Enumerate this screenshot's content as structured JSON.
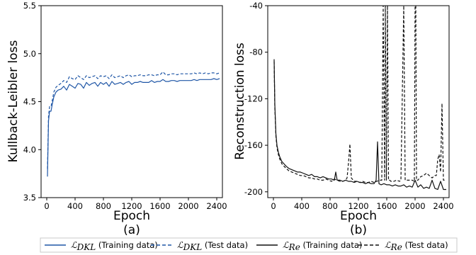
{
  "legend": {
    "items": [
      {
        "symbol": "ℒ",
        "sub": "DKL",
        "text": " (Training data)",
        "color": "#1f56a6",
        "dash": "none"
      },
      {
        "symbol": "ℒ",
        "sub": "DKL",
        "text": " (Test data)",
        "color": "#1f56a6",
        "dash": "5,3"
      },
      {
        "symbol": "ℒ",
        "sub": "Re",
        "text": " (Training data)",
        "color": "#111111",
        "dash": "none"
      },
      {
        "symbol": "ℒ",
        "sub": "Re",
        "text": " (Test data)",
        "color": "#111111",
        "dash": "5,3"
      }
    ]
  },
  "chart_data": [
    {
      "type": "line",
      "xlabel": "Epoch",
      "ylabel": "Kullback-Leibler loss",
      "sublabel": "(a)",
      "xlim": [
        -80,
        2480
      ],
      "ylim": [
        3.5,
        5.5
      ],
      "xticks": [
        0,
        400,
        800,
        1200,
        1600,
        2000,
        2400
      ],
      "yticks": [
        3.5,
        4.0,
        4.5,
        5.0,
        5.5
      ],
      "ytick_labels": [
        "3.5",
        "4.0",
        "4.5",
        "5.0",
        "5.5"
      ],
      "series": [
        {
          "style": "solid",
          "color": "#1f56a6",
          "x": [
            10,
            25,
            40,
            60,
            80,
            100,
            130,
            160,
            200,
            240,
            280,
            320,
            360,
            400,
            440,
            480,
            520,
            560,
            600,
            640,
            680,
            720,
            760,
            800,
            840,
            880,
            920,
            960,
            1000,
            1040,
            1080,
            1120,
            1160,
            1200,
            1240,
            1280,
            1320,
            1360,
            1400,
            1440,
            1480,
            1520,
            1560,
            1600,
            1640,
            1680,
            1720,
            1760,
            1800,
            1840,
            1880,
            1920,
            1960,
            2000,
            2040,
            2080,
            2120,
            2160,
            2200,
            2240,
            2280,
            2320,
            2360,
            2400,
            2440
          ],
          "y": [
            3.72,
            4.3,
            4.4,
            4.4,
            4.48,
            4.55,
            4.6,
            4.62,
            4.63,
            4.66,
            4.62,
            4.68,
            4.66,
            4.64,
            4.69,
            4.68,
            4.64,
            4.7,
            4.67,
            4.69,
            4.7,
            4.66,
            4.7,
            4.68,
            4.7,
            4.66,
            4.71,
            4.68,
            4.69,
            4.7,
            4.68,
            4.7,
            4.71,
            4.68,
            4.7,
            4.7,
            4.71,
            4.7,
            4.7,
            4.7,
            4.72,
            4.7,
            4.71,
            4.71,
            4.73,
            4.71,
            4.71,
            4.72,
            4.72,
            4.71,
            4.72,
            4.72,
            4.72,
            4.72,
            4.72,
            4.73,
            4.72,
            4.73,
            4.73,
            4.73,
            4.73,
            4.73,
            4.74,
            4.73,
            4.74
          ]
        },
        {
          "style": "dashed",
          "color": "#1f56a6",
          "x": [
            10,
            25,
            40,
            60,
            80,
            100,
            130,
            160,
            200,
            240,
            280,
            320,
            360,
            400,
            440,
            480,
            520,
            560,
            600,
            640,
            680,
            720,
            760,
            800,
            840,
            880,
            920,
            960,
            1000,
            1040,
            1080,
            1120,
            1160,
            1200,
            1240,
            1280,
            1320,
            1360,
            1400,
            1440,
            1480,
            1520,
            1560,
            1600,
            1640,
            1680,
            1720,
            1760,
            1800,
            1840,
            1880,
            1920,
            1960,
            2000,
            2040,
            2080,
            2120,
            2160,
            2200,
            2240,
            2280,
            2320,
            2360,
            2400,
            2440
          ],
          "y": [
            3.8,
            4.35,
            4.45,
            4.45,
            4.52,
            4.6,
            4.65,
            4.67,
            4.69,
            4.72,
            4.7,
            4.76,
            4.74,
            4.73,
            4.77,
            4.75,
            4.73,
            4.77,
            4.75,
            4.76,
            4.77,
            4.74,
            4.77,
            4.76,
            4.77,
            4.74,
            4.78,
            4.75,
            4.76,
            4.77,
            4.75,
            4.77,
            4.78,
            4.76,
            4.77,
            4.77,
            4.78,
            4.77,
            4.77,
            4.78,
            4.78,
            4.77,
            4.78,
            4.78,
            4.81,
            4.78,
            4.78,
            4.79,
            4.79,
            4.78,
            4.79,
            4.79,
            4.79,
            4.79,
            4.79,
            4.8,
            4.79,
            4.8,
            4.79,
            4.8,
            4.79,
            4.8,
            4.8,
            4.79,
            4.8
          ]
        }
      ]
    },
    {
      "type": "line",
      "xlabel": "Epoch",
      "ylabel": "Reconstruction loss",
      "sublabel": "(b)",
      "xlim": [
        -80,
        2480
      ],
      "ylim": [
        -205,
        -40
      ],
      "xticks": [
        0,
        400,
        800,
        1200,
        1600,
        2000,
        2400
      ],
      "yticks": [
        -200,
        -160,
        -120,
        -80,
        -40
      ],
      "ytick_labels": [
        "-200",
        "-160",
        "-120",
        "-80",
        "-40"
      ],
      "series": [
        {
          "style": "solid",
          "color": "#111111",
          "x": [
            10,
            20,
            35,
            50,
            70,
            90,
            120,
            150,
            180,
            220,
            260,
            300,
            340,
            380,
            420,
            460,
            500,
            540,
            580,
            620,
            660,
            700,
            740,
            780,
            820,
            860,
            880,
            900,
            940,
            980,
            1020,
            1060,
            1100,
            1140,
            1180,
            1220,
            1260,
            1300,
            1340,
            1380,
            1420,
            1450,
            1470,
            1490,
            1520,
            1560,
            1600,
            1640,
            1680,
            1720,
            1760,
            1800,
            1840,
            1880,
            1920,
            1960,
            2000,
            2040,
            2080,
            2120,
            2160,
            2200,
            2240,
            2280,
            2320,
            2360,
            2400,
            2440
          ],
          "y": [
            -86,
            -125,
            -150,
            -160,
            -166,
            -170,
            -174,
            -176,
            -178,
            -180,
            -181,
            -182,
            -183,
            -183,
            -184,
            -185,
            -186,
            -185,
            -187,
            -187,
            -188,
            -187,
            -188,
            -189,
            -189,
            -190,
            -183,
            -190,
            -190,
            -191,
            -190,
            -191,
            -191,
            -192,
            -191,
            -192,
            -192,
            -193,
            -192,
            -193,
            -193,
            -190,
            -157,
            -193,
            -194,
            -193,
            -194,
            -194,
            -195,
            -194,
            -195,
            -195,
            -194,
            -196,
            -195,
            -196,
            -190,
            -196,
            -194,
            -197,
            -196,
            -197,
            -190,
            -197,
            -198,
            -191,
            -198,
            -198
          ]
        },
        {
          "style": "dashed",
          "color": "#111111",
          "x": [
            10,
            20,
            35,
            50,
            70,
            90,
            120,
            150,
            180,
            220,
            260,
            300,
            340,
            380,
            420,
            460,
            500,
            540,
            580,
            620,
            660,
            700,
            740,
            780,
            820,
            860,
            900,
            940,
            980,
            1020,
            1040,
            1060,
            1080,
            1100,
            1140,
            1180,
            1220,
            1260,
            1300,
            1340,
            1380,
            1420,
            1460,
            1500,
            1530,
            1550,
            1570,
            1580,
            1595,
            1610,
            1625,
            1640,
            1660,
            1700,
            1740,
            1780,
            1800,
            1840,
            1860,
            1880,
            1920,
            1960,
            1990,
            2000,
            2010,
            2020,
            2040,
            2080,
            2120,
            2160,
            2200,
            2240,
            2280,
            2300,
            2320,
            2340,
            2360,
            2380,
            2400,
            2440
          ],
          "y": [
            -88,
            -128,
            -152,
            -162,
            -168,
            -172,
            -176,
            -178,
            -180,
            -182,
            -183,
            -184,
            -185,
            -186,
            -186,
            -187,
            -188,
            -188,
            -189,
            -189,
            -190,
            -190,
            -189,
            -190,
            -191,
            -189,
            -190,
            -191,
            -191,
            -190,
            -188,
            -175,
            -159,
            -188,
            -191,
            -191,
            -192,
            -191,
            -192,
            -192,
            -191,
            -192,
            -191,
            -190,
            -190,
            -40,
            -190,
            -40,
            -190,
            -40,
            -190,
            -190,
            -191,
            -191,
            -190,
            -191,
            -190,
            -40,
            -190,
            -190,
            -190,
            -190,
            -191,
            -40,
            -40,
            -190,
            -190,
            -187,
            -186,
            -184,
            -186,
            -188,
            -186,
            -186,
            -172,
            -168,
            -183,
            -124,
            -190,
            -190
          ]
        }
      ]
    }
  ]
}
